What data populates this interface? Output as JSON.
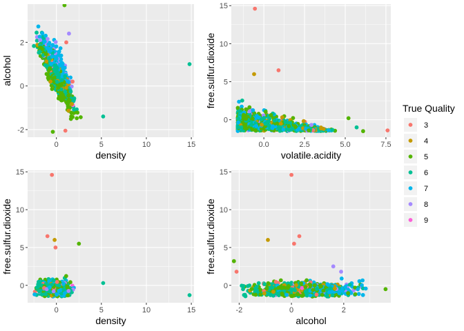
{
  "legend": {
    "title": "True Quality",
    "entries": [
      {
        "label": "3",
        "color": "#F8766D"
      },
      {
        "label": "4",
        "color": "#C49A00"
      },
      {
        "label": "5",
        "color": "#53B400"
      },
      {
        "label": "6",
        "color": "#00C094"
      },
      {
        "label": "7",
        "color": "#00B6EB"
      },
      {
        "label": "8",
        "color": "#A58AFF"
      },
      {
        "label": "9",
        "color": "#FB61D7"
      }
    ]
  },
  "chart_data": [
    {
      "type": "scatter",
      "xlabel": "density",
      "ylabel": "alcohol",
      "xlim": [
        -3.2,
        15.3
      ],
      "ylim": [
        -2.35,
        3.75
      ],
      "xticks": [
        0,
        5,
        10,
        15
      ],
      "yticks": [
        -2,
        0,
        2
      ],
      "grid": true,
      "clusters": [
        {
          "x": [
            -2.5,
            2.7
          ],
          "y": [
            -1.8,
            3.0
          ],
          "note": "dense cloud, mixed quality 3-9, trending from high alcohol at low density to low alcohol at high density"
        }
      ],
      "points": [
        {
          "x": 0.9,
          "y": 3.7,
          "quality": "5"
        },
        {
          "x": 14.8,
          "y": 1.0,
          "quality": "6"
        },
        {
          "x": 5.2,
          "y": -1.4,
          "quality": "6"
        },
        {
          "x": 1.0,
          "y": -2.05,
          "quality": "3"
        },
        {
          "x": 1.8,
          "y": 0.2,
          "quality": "3"
        },
        {
          "x": 1.1,
          "y": 2.0,
          "quality": "3"
        },
        {
          "x": -0.4,
          "y": -2.1,
          "quality": "5"
        },
        {
          "x": 1.4,
          "y": 2.4,
          "quality": "8"
        },
        {
          "x": -1.8,
          "y": 2.1,
          "quality": "8"
        }
      ]
    },
    {
      "type": "scatter",
      "xlabel": "volatile.acidity",
      "ylabel": "free.sulfur.dioxide",
      "xlim": [
        -2.0,
        7.8
      ],
      "ylim": [
        -2.3,
        15.2
      ],
      "xticks": [
        0.0,
        2.5,
        5.0,
        7.5
      ],
      "xtick_labels": [
        "0.0",
        "2.5",
        "5.0",
        "7.5"
      ],
      "yticks": [
        0,
        5,
        10,
        15
      ],
      "grid": true,
      "clusters": [
        {
          "x": [
            -1.6,
            4.5
          ],
          "y": [
            -1.5,
            5.0
          ],
          "note": "dense cloud, mixed quality 3-9, spread narrowing as volatile.acidity rises"
        }
      ],
      "points": [
        {
          "x": -0.55,
          "y": 14.6,
          "quality": "3"
        },
        {
          "x": 0.9,
          "y": 6.5,
          "quality": "3"
        },
        {
          "x": 7.6,
          "y": -1.4,
          "quality": "3"
        },
        {
          "x": 6.1,
          "y": -1.5,
          "quality": "5"
        },
        {
          "x": 5.7,
          "y": -1.0,
          "quality": "6"
        },
        {
          "x": 5.2,
          "y": 0.2,
          "quality": "5"
        },
        {
          "x": -0.6,
          "y": 6.0,
          "quality": "4"
        }
      ]
    },
    {
      "type": "scatter",
      "xlabel": "density",
      "ylabel": "free.sulfur.dioxide",
      "xlim": [
        -3.2,
        15.3
      ],
      "ylim": [
        -2.3,
        15.2
      ],
      "xticks": [
        0,
        5,
        10,
        15
      ],
      "yticks": [
        0,
        5,
        10,
        15
      ],
      "grid": true,
      "clusters": [
        {
          "x": [
            -2.5,
            2.8
          ],
          "y": [
            -1.5,
            4.0
          ],
          "note": "dense cloud, mixed quality 3-9"
        }
      ],
      "points": [
        {
          "x": -0.5,
          "y": 14.6,
          "quality": "3"
        },
        {
          "x": -1.0,
          "y": 6.5,
          "quality": "3"
        },
        {
          "x": -0.2,
          "y": 6.0,
          "quality": "4"
        },
        {
          "x": -0.1,
          "y": 5.0,
          "quality": "3"
        },
        {
          "x": 2.5,
          "y": 5.5,
          "quality": "5"
        },
        {
          "x": 5.2,
          "y": 0.3,
          "quality": "6"
        },
        {
          "x": 14.8,
          "y": -1.3,
          "quality": "6"
        }
      ]
    },
    {
      "type": "scatter",
      "xlabel": "alcohol",
      "ylabel": "free.sulfur.dioxide",
      "xlim": [
        -2.3,
        3.8
      ],
      "ylim": [
        -2.3,
        15.2
      ],
      "xticks": [
        -2,
        0,
        2
      ],
      "yticks": [
        0,
        5,
        10,
        15
      ],
      "grid": true,
      "clusters": [
        {
          "x": [
            -1.9,
            3.0
          ],
          "y": [
            -1.5,
            3.5
          ],
          "note": "dense cloud, mixed quality 3-9, higher quality at higher alcohol"
        }
      ],
      "points": [
        {
          "x": 0.0,
          "y": 14.6,
          "quality": "3"
        },
        {
          "x": 0.3,
          "y": 6.5,
          "quality": "3"
        },
        {
          "x": -0.9,
          "y": 6.0,
          "quality": "4"
        },
        {
          "x": 0.1,
          "y": 5.5,
          "quality": "3"
        },
        {
          "x": -2.1,
          "y": 1.8,
          "quality": "3"
        },
        {
          "x": -2.2,
          "y": 3.2,
          "quality": "5"
        },
        {
          "x": 3.6,
          "y": -0.5,
          "quality": "5"
        },
        {
          "x": 1.6,
          "y": 2.5,
          "quality": "8"
        },
        {
          "x": 1.9,
          "y": 1.8,
          "quality": "8"
        }
      ]
    }
  ]
}
